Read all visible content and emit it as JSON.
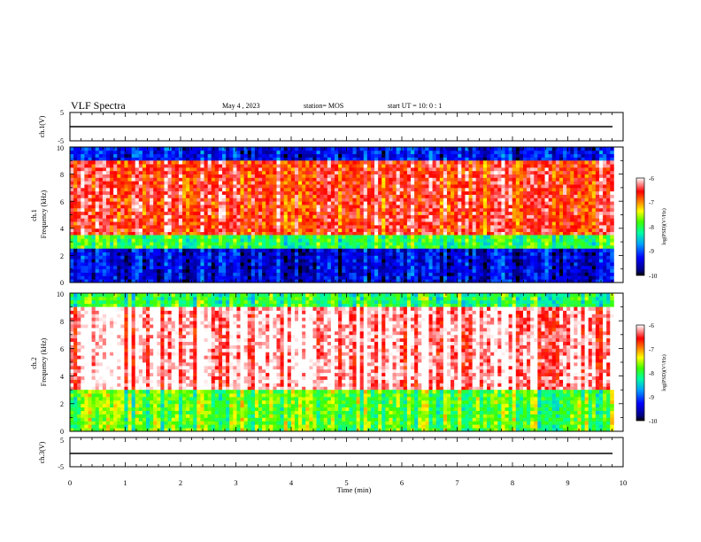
{
  "header": {
    "title": "VLF Spectra",
    "date": "May 4 , 2023",
    "station": "station= MOS",
    "start": "start UT = 10: 0 : 1"
  },
  "colorbar": {
    "label": "log(PSD)(V²/Hz)",
    "ticks": [
      "-6",
      "-7",
      "-8",
      "-9",
      "-10"
    ],
    "range": [
      -10,
      -6
    ]
  },
  "chart_data": [
    {
      "type": "line",
      "ylabel": "ch.1(V)",
      "ylim": [
        -5,
        5
      ],
      "y_ticks": [
        "5",
        "-5"
      ],
      "x": [
        0,
        9.83
      ],
      "values": [
        0,
        0
      ]
    },
    {
      "type": "heatmap",
      "ylabel": "ch.1\nFrequency (kHz)",
      "xlim": [
        0,
        10
      ],
      "ylim": [
        0,
        10
      ],
      "y_ticks": [
        "10",
        "8",
        "6",
        "4",
        "2",
        "0"
      ],
      "bands": [
        {
          "f": [
            9.0,
            10.0
          ],
          "level": -9.3
        },
        {
          "f": [
            3.5,
            9.0
          ],
          "level": -6.6
        },
        {
          "f": [
            2.5,
            3.5
          ],
          "level": -8.0
        },
        {
          "f": [
            0.0,
            2.5
          ],
          "level": -9.4
        }
      ]
    },
    {
      "type": "heatmap",
      "ylabel": "ch.2\nFrequency (kHz)",
      "xlim": [
        0,
        10
      ],
      "ylim": [
        0,
        10
      ],
      "y_ticks": [
        "10",
        "8",
        "6",
        "4",
        "2",
        "0"
      ],
      "bands": [
        {
          "f": [
            9.0,
            10.0
          ],
          "level": -8.0
        },
        {
          "f": [
            3.0,
            9.0
          ],
          "level": -6.1
        },
        {
          "f": [
            0.0,
            3.0
          ],
          "level": -7.8
        }
      ]
    },
    {
      "type": "line",
      "ylabel": "ch.3(V)",
      "xlabel": "Time (min)",
      "xlim": [
        0,
        10
      ],
      "ylim": [
        -5,
        5
      ],
      "y_ticks": [
        "5",
        "-5"
      ],
      "x_ticks": [
        "0",
        "1",
        "2",
        "3",
        "4",
        "5",
        "6",
        "7",
        "8",
        "9",
        "10"
      ],
      "x": [
        0,
        9.83
      ],
      "values": [
        0,
        0
      ]
    }
  ]
}
